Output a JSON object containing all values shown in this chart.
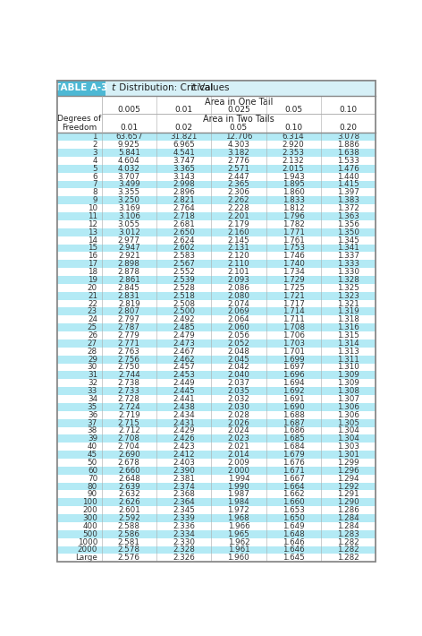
{
  "title_label": "TABLE A-3",
  "title_text": "t Distribution: Critical t Values",
  "header1_text": "Area in One Tail",
  "header1_cols": [
    "0.005",
    "0.01",
    "0.025",
    "0.05",
    "0.10"
  ],
  "header2_left": "Degrees of\nFreedom",
  "header2_text": "Area in Two Tails",
  "header2_cols": [
    "0.01",
    "0.02",
    "0.05",
    "0.10",
    "0.20"
  ],
  "rows": [
    [
      "1",
      "63.657",
      "31.821",
      "12.706",
      "6.314",
      "3.078"
    ],
    [
      "2",
      "9.925",
      "6.965",
      "4.303",
      "2.920",
      "1.886"
    ],
    [
      "3",
      "5.841",
      "4.541",
      "3.182",
      "2.353",
      "1.638"
    ],
    [
      "4",
      "4.604",
      "3.747",
      "2.776",
      "2.132",
      "1.533"
    ],
    [
      "5",
      "4.032",
      "3.365",
      "2.571",
      "2.015",
      "1.476"
    ],
    [
      "6",
      "3.707",
      "3.143",
      "2.447",
      "1.943",
      "1.440"
    ],
    [
      "7",
      "3.499",
      "2.998",
      "2.365",
      "1.895",
      "1.415"
    ],
    [
      "8",
      "3.355",
      "2.896",
      "2.306",
      "1.860",
      "1.397"
    ],
    [
      "9",
      "3.250",
      "2.821",
      "2.262",
      "1.833",
      "1.383"
    ],
    [
      "10",
      "3.169",
      "2.764",
      "2.228",
      "1.812",
      "1.372"
    ],
    [
      "11",
      "3.106",
      "2.718",
      "2.201",
      "1.796",
      "1.363"
    ],
    [
      "12",
      "3.055",
      "2.681",
      "2.179",
      "1.782",
      "1.356"
    ],
    [
      "13",
      "3.012",
      "2.650",
      "2.160",
      "1.771",
      "1.350"
    ],
    [
      "14",
      "2.977",
      "2.624",
      "2.145",
      "1.761",
      "1.345"
    ],
    [
      "15",
      "2.947",
      "2.602",
      "2.131",
      "1.753",
      "1.341"
    ],
    [
      "16",
      "2.921",
      "2.583",
      "2.120",
      "1.746",
      "1.337"
    ],
    [
      "17",
      "2.898",
      "2.567",
      "2.110",
      "1.740",
      "1.333"
    ],
    [
      "18",
      "2.878",
      "2.552",
      "2.101",
      "1.734",
      "1.330"
    ],
    [
      "19",
      "2.861",
      "2.539",
      "2.093",
      "1.729",
      "1.328"
    ],
    [
      "20",
      "2.845",
      "2.528",
      "2.086",
      "1.725",
      "1.325"
    ],
    [
      "21",
      "2.831",
      "2.518",
      "2.080",
      "1.721",
      "1.323"
    ],
    [
      "22",
      "2.819",
      "2.508",
      "2.074",
      "1.717",
      "1.321"
    ],
    [
      "23",
      "2.807",
      "2.500",
      "2.069",
      "1.714",
      "1.319"
    ],
    [
      "24",
      "2.797",
      "2.492",
      "2.064",
      "1.711",
      "1.318"
    ],
    [
      "25",
      "2.787",
      "2.485",
      "2.060",
      "1.708",
      "1.316"
    ],
    [
      "26",
      "2.779",
      "2.479",
      "2.056",
      "1.706",
      "1.315"
    ],
    [
      "27",
      "2.771",
      "2.473",
      "2.052",
      "1.703",
      "1.314"
    ],
    [
      "28",
      "2.763",
      "2.467",
      "2.048",
      "1.701",
      "1.313"
    ],
    [
      "29",
      "2.756",
      "2.462",
      "2.045",
      "1.699",
      "1.311"
    ],
    [
      "30",
      "2.750",
      "2.457",
      "2.042",
      "1.697",
      "1.310"
    ],
    [
      "31",
      "2.744",
      "2.453",
      "2.040",
      "1.696",
      "1.309"
    ],
    [
      "32",
      "2.738",
      "2.449",
      "2.037",
      "1.694",
      "1.309"
    ],
    [
      "33",
      "2.733",
      "2.445",
      "2.035",
      "1.692",
      "1.308"
    ],
    [
      "34",
      "2.728",
      "2.441",
      "2.032",
      "1.691",
      "1.307"
    ],
    [
      "35",
      "2.724",
      "2.438",
      "2.030",
      "1.690",
      "1.306"
    ],
    [
      "36",
      "2.719",
      "2.434",
      "2.028",
      "1.688",
      "1.306"
    ],
    [
      "37",
      "2.715",
      "2.431",
      "2.026",
      "1.687",
      "1.305"
    ],
    [
      "38",
      "2.712",
      "2.429",
      "2.024",
      "1.686",
      "1.304"
    ],
    [
      "39",
      "2.708",
      "2.426",
      "2.023",
      "1.685",
      "1.304"
    ],
    [
      "40",
      "2.704",
      "2.423",
      "2.021",
      "1.684",
      "1.303"
    ],
    [
      "45",
      "2.690",
      "2.412",
      "2.014",
      "1.679",
      "1.301"
    ],
    [
      "50",
      "2.678",
      "2.403",
      "2.009",
      "1.676",
      "1.299"
    ],
    [
      "60",
      "2.660",
      "2.390",
      "2.000",
      "1.671",
      "1.296"
    ],
    [
      "70",
      "2.648",
      "2.381",
      "1.994",
      "1.667",
      "1.294"
    ],
    [
      "80",
      "2.639",
      "2.374",
      "1.990",
      "1.664",
      "1.292"
    ],
    [
      "90",
      "2.632",
      "2.368",
      "1.987",
      "1.662",
      "1.291"
    ],
    [
      "100",
      "2.626",
      "2.364",
      "1.984",
      "1.660",
      "1.290"
    ],
    [
      "200",
      "2.601",
      "2.345",
      "1.972",
      "1.653",
      "1.286"
    ],
    [
      "300",
      "2.592",
      "2.339",
      "1.968",
      "1.650",
      "1.284"
    ],
    [
      "400",
      "2.588",
      "2.336",
      "1.966",
      "1.649",
      "1.284"
    ],
    [
      "500",
      "2.586",
      "2.334",
      "1.965",
      "1.648",
      "1.283"
    ],
    [
      "1000",
      "2.581",
      "2.330",
      "1.962",
      "1.646",
      "1.282"
    ],
    [
      "2000",
      "2.578",
      "2.328",
      "1.961",
      "1.646",
      "1.282"
    ],
    [
      "Large",
      "2.576",
      "2.326",
      "1.960",
      "1.645",
      "1.282"
    ]
  ],
  "title_badge_bg": "#4db8d4",
  "title_bar_bg": "#d6f0f7",
  "row_bg_odd": "#b3eaf5",
  "row_bg_even": "#ffffff",
  "header_bg": "#ffffff",
  "outer_border": "#888888",
  "inner_border": "#aaaaaa",
  "text_color": "#333333",
  "title_label_color": "#ffffff",
  "title_text_color": "#222222"
}
